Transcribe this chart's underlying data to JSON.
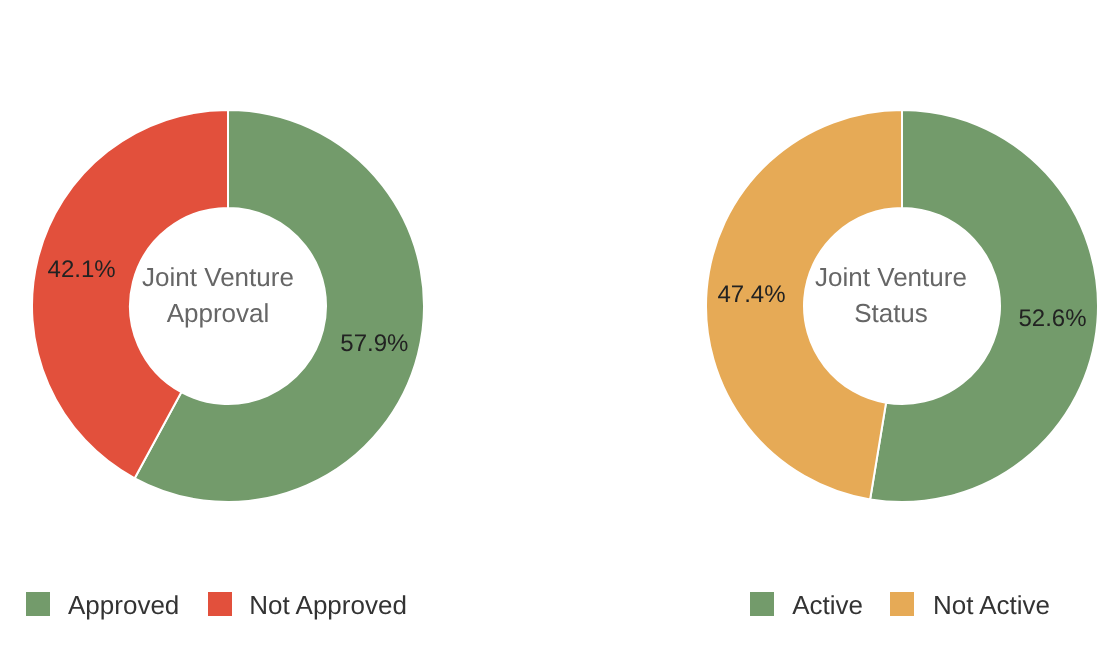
{
  "chart_data": [
    {
      "type": "donut",
      "title": "Joint Venture Approval",
      "categories": [
        "Approved",
        "Not Approved"
      ],
      "values": [
        57.9,
        42.1
      ],
      "colors": [
        "#739b6b",
        "#e2503c"
      ],
      "value_labels": [
        "57.9%",
        "42.1%"
      ],
      "legend": "bottom left"
    },
    {
      "type": "donut",
      "title": "Joint Venture Status",
      "categories": [
        "Active",
        "Not Active"
      ],
      "values": [
        52.6,
        47.4
      ],
      "colors": [
        "#739b6b",
        "#e6aa56"
      ],
      "value_labels": [
        "52.6%",
        "47.4%"
      ],
      "legend": "bottom right"
    }
  ]
}
